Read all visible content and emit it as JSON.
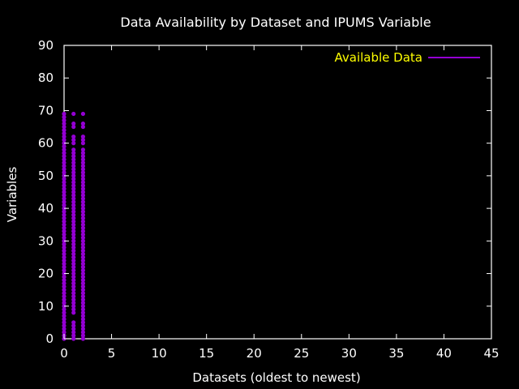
{
  "chart_data": {
    "type": "scatter",
    "title": "Data Availability by Dataset and IPUMS Variable",
    "xlabel": "Datasets (oldest to newest)",
    "ylabel": "Variables",
    "xlim": [
      0,
      45
    ],
    "ylim": [
      0,
      90
    ],
    "x_ticks": [
      "0",
      "5",
      "10",
      "15",
      "20",
      "25",
      "30",
      "35",
      "40",
      "45"
    ],
    "y_ticks": [
      "0",
      "10",
      "20",
      "30",
      "40",
      "50",
      "60",
      "70",
      "80",
      "90"
    ],
    "grid": false,
    "legend_position": "top-right",
    "marker": "dot",
    "series": [
      {
        "name": "Available Data",
        "color": "#9400d3",
        "x_range": [
          0,
          44
        ],
        "values_by_dataset_note": null
      }
    ],
    "points": [
      [
        0,
        0
      ],
      [
        0,
        1
      ],
      [
        0,
        2
      ],
      [
        0,
        3
      ],
      [
        0,
        4
      ],
      [
        0,
        5
      ],
      [
        0,
        6
      ],
      [
        0,
        7
      ],
      [
        0,
        8
      ],
      [
        0,
        9
      ],
      [
        0,
        10
      ],
      [
        0,
        11
      ],
      [
        0,
        12
      ],
      [
        0,
        13
      ],
      [
        0,
        14
      ],
      [
        0,
        15
      ],
      [
        0,
        16
      ],
      [
        0,
        17
      ],
      [
        0,
        18
      ],
      [
        0,
        19
      ],
      [
        0,
        20
      ],
      [
        0,
        21
      ],
      [
        0,
        22
      ],
      [
        0,
        23
      ],
      [
        0,
        24
      ],
      [
        0,
        25
      ],
      [
        0,
        26
      ],
      [
        0,
        27
      ],
      [
        0,
        28
      ],
      [
        0,
        29
      ],
      [
        0,
        30
      ],
      [
        0,
        31
      ],
      [
        0,
        32
      ],
      [
        0,
        33
      ],
      [
        0,
        34
      ],
      [
        0,
        35
      ],
      [
        0,
        36
      ],
      [
        0,
        37
      ],
      [
        0,
        38
      ],
      [
        0,
        39
      ],
      [
        0,
        40
      ],
      [
        0,
        41
      ],
      [
        0,
        42
      ],
      [
        0,
        43
      ],
      [
        0,
        44
      ],
      [
        0,
        45
      ],
      [
        0,
        46
      ],
      [
        0,
        47
      ],
      [
        0,
        48
      ],
      [
        0,
        49
      ],
      [
        0,
        50
      ],
      [
        0,
        51
      ],
      [
        0,
        52
      ],
      [
        0,
        53
      ],
      [
        0,
        54
      ],
      [
        0,
        55
      ],
      [
        0,
        56
      ],
      [
        0,
        57
      ],
      [
        0,
        58
      ],
      [
        0,
        59
      ],
      [
        0,
        60
      ],
      [
        0,
        61
      ],
      [
        0,
        62
      ],
      [
        0,
        63
      ],
      [
        0,
        64
      ],
      [
        0,
        65
      ],
      [
        0,
        66
      ],
      [
        0,
        67
      ],
      [
        0,
        68
      ],
      [
        0,
        69
      ],
      [
        1,
        0
      ],
      [
        1,
        1
      ],
      [
        1,
        2
      ],
      [
        1,
        3
      ],
      [
        1,
        4
      ],
      [
        1,
        5
      ],
      [
        1,
        8
      ],
      [
        1,
        9
      ],
      [
        1,
        10
      ],
      [
        1,
        11
      ],
      [
        1,
        12
      ],
      [
        1,
        13
      ],
      [
        1,
        14
      ],
      [
        1,
        15
      ],
      [
        1,
        16
      ],
      [
        1,
        17
      ],
      [
        1,
        18
      ],
      [
        1,
        19
      ],
      [
        1,
        20
      ],
      [
        1,
        21
      ],
      [
        1,
        22
      ],
      [
        1,
        23
      ],
      [
        1,
        24
      ],
      [
        1,
        25
      ],
      [
        1,
        26
      ],
      [
        1,
        27
      ],
      [
        1,
        28
      ],
      [
        1,
        29
      ],
      [
        1,
        30
      ],
      [
        1,
        31
      ],
      [
        1,
        32
      ],
      [
        1,
        33
      ],
      [
        1,
        34
      ],
      [
        1,
        35
      ],
      [
        1,
        36
      ],
      [
        1,
        37
      ],
      [
        1,
        38
      ],
      [
        1,
        39
      ],
      [
        1,
        40
      ],
      [
        1,
        41
      ],
      [
        1,
        42
      ],
      [
        1,
        43
      ],
      [
        1,
        44
      ],
      [
        1,
        45
      ],
      [
        1,
        46
      ],
      [
        1,
        47
      ],
      [
        1,
        48
      ],
      [
        1,
        49
      ],
      [
        1,
        50
      ],
      [
        1,
        51
      ],
      [
        1,
        52
      ],
      [
        1,
        53
      ],
      [
        1,
        54
      ],
      [
        1,
        55
      ],
      [
        1,
        56
      ],
      [
        1,
        57
      ],
      [
        1,
        58
      ],
      [
        1,
        60
      ],
      [
        1,
        61
      ],
      [
        1,
        62
      ],
      [
        1,
        65
      ],
      [
        1,
        66
      ],
      [
        1,
        69
      ],
      [
        2,
        0
      ],
      [
        2,
        1
      ],
      [
        2,
        2
      ],
      [
        2,
        3
      ],
      [
        2,
        4
      ],
      [
        2,
        5
      ],
      [
        2,
        6
      ],
      [
        2,
        7
      ],
      [
        2,
        8
      ],
      [
        2,
        9
      ],
      [
        2,
        10
      ],
      [
        2,
        11
      ],
      [
        2,
        12
      ],
      [
        2,
        13
      ],
      [
        2,
        14
      ],
      [
        2,
        15
      ],
      [
        2,
        16
      ],
      [
        2,
        17
      ],
      [
        2,
        18
      ],
      [
        2,
        19
      ],
      [
        2,
        20
      ],
      [
        2,
        21
      ],
      [
        2,
        22
      ],
      [
        2,
        23
      ],
      [
        2,
        24
      ],
      [
        2,
        25
      ],
      [
        2,
        26
      ],
      [
        2,
        27
      ],
      [
        2,
        28
      ],
      [
        2,
        29
      ],
      [
        2,
        30
      ],
      [
        2,
        31
      ],
      [
        2,
        32
      ],
      [
        2,
        33
      ],
      [
        2,
        34
      ],
      [
        2,
        35
      ],
      [
        2,
        36
      ],
      [
        2,
        37
      ],
      [
        2,
        38
      ],
      [
        2,
        39
      ],
      [
        2,
        40
      ],
      [
        2,
        41
      ],
      [
        2,
        42
      ],
      [
        2,
        43
      ],
      [
        2,
        44
      ],
      [
        2,
        45
      ],
      [
        2,
        46
      ],
      [
        2,
        47
      ],
      [
        2,
        48
      ],
      [
        2,
        49
      ],
      [
        2,
        50
      ],
      [
        2,
        51
      ],
      [
        2,
        52
      ],
      [
        2,
        53
      ],
      [
        2,
        54
      ],
      [
        2,
        55
      ],
      [
        2,
        56
      ],
      [
        2,
        57
      ],
      [
        2,
        58
      ],
      [
        2,
        60
      ],
      [
        2,
        61
      ],
      [
        2,
        62
      ],
      [
        2,
        65
      ],
      [
        2,
        66
      ],
      [
        2,
        69
      ]
    ]
  }
}
